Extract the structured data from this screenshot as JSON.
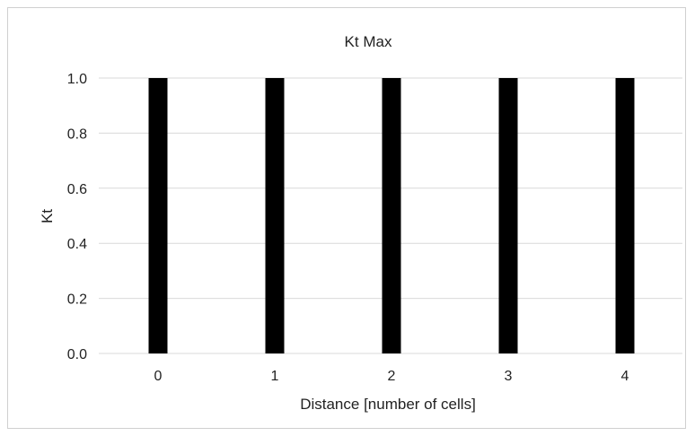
{
  "chart_data": {
    "type": "bar",
    "title": "Kt Max",
    "xlabel": "Distance [number of cells]",
    "ylabel": "Kt",
    "categories": [
      "0",
      "1",
      "2",
      "3",
      "4"
    ],
    "values": [
      1.0,
      1.0,
      1.0,
      1.0,
      1.0
    ],
    "ylim": [
      0.0,
      1.0
    ],
    "yticks": [
      "0.0",
      "0.2",
      "0.4",
      "0.6",
      "0.8",
      "1.0"
    ],
    "grid": true,
    "legend": "none",
    "bar_color": "#000000",
    "grid_color": "#d9d9d9"
  }
}
